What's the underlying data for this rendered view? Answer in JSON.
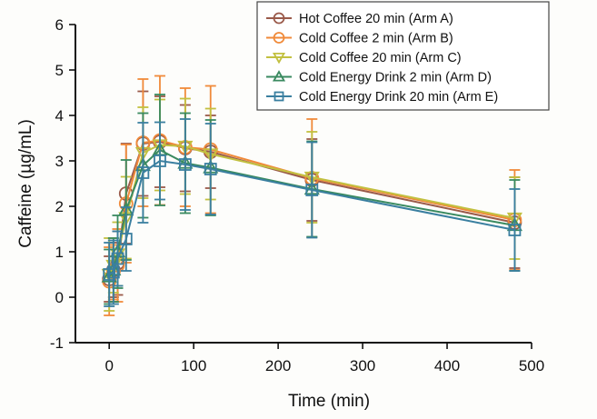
{
  "chart_data": {
    "type": "line",
    "title": "",
    "xlabel": "Time (min)",
    "ylabel": "Caffeine (µg/mL)",
    "xlim": [
      -40,
      500
    ],
    "ylim": [
      -1,
      6
    ],
    "xticks": [
      0,
      100,
      200,
      300,
      400,
      500
    ],
    "xtick_labels": [
      "0",
      "100",
      "200",
      "300",
      "400",
      "500"
    ],
    "yticks": [
      -1,
      0,
      1,
      2,
      3,
      4,
      5,
      6
    ],
    "ytick_labels": [
      "-1",
      "0",
      "1",
      "2",
      "3",
      "4",
      "5",
      "6"
    ],
    "grid": false,
    "legend_position": "top-right",
    "x": [
      0,
      5,
      10,
      20,
      40,
      60,
      90,
      120,
      240,
      480
    ],
    "series": [
      {
        "name": "Hot Coffee 20 min (Arm A)",
        "color": "#9a5a4a",
        "marker": "circle",
        "values": [
          0.4,
          0.6,
          0.75,
          2.28,
          3.38,
          3.42,
          3.28,
          3.2,
          2.58,
          1.64
        ],
        "error": [
          0.5,
          0.6,
          0.7,
          1.1,
          1.15,
          1.0,
          0.95,
          0.8,
          0.9,
          1.0
        ]
      },
      {
        "name": "Cold Coffee 2 min (Arm B)",
        "color": "#f08a3a",
        "marker": "circle",
        "values": [
          0.35,
          0.55,
          0.7,
          2.06,
          3.4,
          3.45,
          3.3,
          3.25,
          2.62,
          1.7
        ],
        "error": [
          0.75,
          0.6,
          0.8,
          1.3,
          1.4,
          1.42,
          1.3,
          1.4,
          1.3,
          1.1
        ]
      },
      {
        "name": "Cold Coffee 20 min (Arm C)",
        "color": "#c2c040",
        "marker": "triangle-down",
        "values": [
          0.5,
          0.7,
          0.95,
          1.75,
          3.18,
          3.35,
          3.32,
          3.15,
          2.64,
          1.74
        ],
        "error": [
          0.8,
          0.6,
          0.7,
          0.9,
          1.0,
          1.0,
          1.05,
          1.0,
          1.0,
          0.9
        ]
      },
      {
        "name": "Cold Energy Drink 2 min (Arm D)",
        "color": "#3a8a60",
        "marker": "triangle-up",
        "values": [
          0.45,
          0.6,
          1.0,
          1.92,
          2.9,
          3.24,
          2.95,
          2.85,
          2.38,
          1.58
        ],
        "error": [
          0.6,
          0.7,
          0.8,
          1.1,
          1.15,
          1.22,
          1.1,
          1.05,
          1.05,
          1.0
        ]
      },
      {
        "name": "Cold Energy Drink 20 min (Arm E)",
        "color": "#3a7fa0",
        "marker": "square",
        "values": [
          0.5,
          0.55,
          0.85,
          1.28,
          2.74,
          3.0,
          2.92,
          2.82,
          2.36,
          1.48
        ],
        "error": [
          0.7,
          0.7,
          0.6,
          0.7,
          1.1,
          0.85,
          1.0,
          1.0,
          1.05,
          0.9
        ]
      }
    ]
  }
}
